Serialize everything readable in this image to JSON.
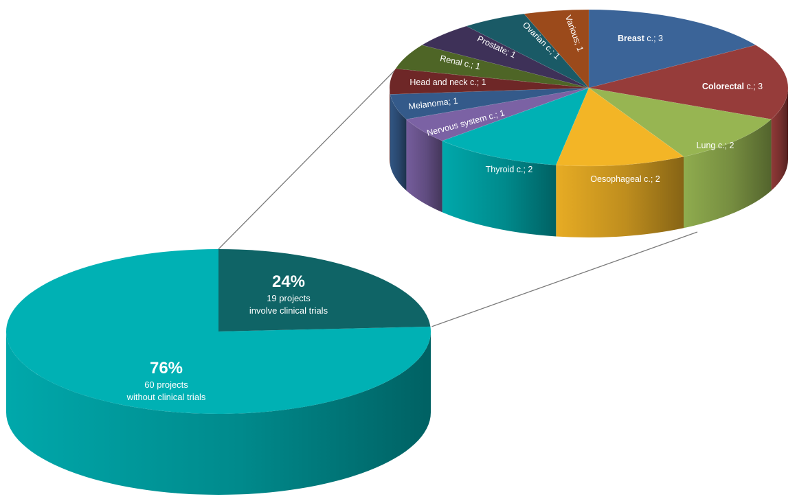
{
  "chart_data": [
    {
      "type": "pie",
      "slices": [
        {
          "label": "76%",
          "sub1": "60 projects",
          "sub2": "without clinical trials",
          "value": 60,
          "percent": 76,
          "color": "#00b1b4"
        },
        {
          "label": "24%",
          "sub1": "19 projects",
          "sub2": "involve clinical trials",
          "value": 19,
          "percent": 24,
          "color": "#0f6466"
        }
      ]
    },
    {
      "type": "pie",
      "slices": [
        {
          "label_bold": "Breast",
          "label_rest": " c.; 3",
          "value": 3,
          "color": "#3b6498"
        },
        {
          "label_bold": "Colorectal",
          "label_rest": " c.; 3",
          "value": 3,
          "color": "#963c3a"
        },
        {
          "label": "Lung c.; 2",
          "value": 2,
          "color": "#97b552"
        },
        {
          "label": "Oesophageal c.; 2",
          "value": 2,
          "color": "#f3b526"
        },
        {
          "label": "Thyroid c.; 2",
          "value": 2,
          "color": "#00b1b4"
        },
        {
          "label": "Nervous system c.; 1",
          "value": 1,
          "color": "#7b62a4"
        },
        {
          "label": "Melanoma; 1",
          "value": 1,
          "color": "#345a8a"
        },
        {
          "label": "Head and neck c.; 1",
          "value": 1,
          "color": "#6e2727"
        },
        {
          "label": "Renal c.; 1",
          "value": 1,
          "color": "#4e6526"
        },
        {
          "label": "Prostate; 1",
          "value": 1,
          "color": "#3e3158"
        },
        {
          "label": "Ovarian c.; 1",
          "value": 1,
          "color": "#1a5a66"
        },
        {
          "label": "Various; 1",
          "value": 1,
          "color": "#9b4a1b"
        }
      ]
    }
  ]
}
